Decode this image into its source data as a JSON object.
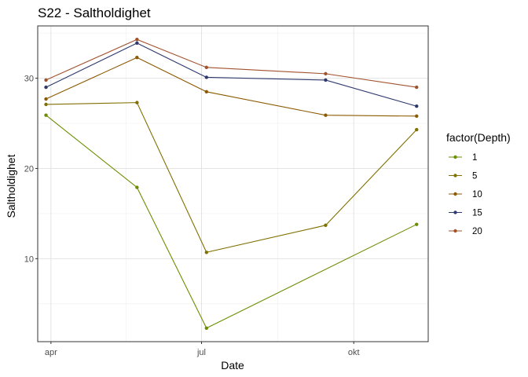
{
  "chart_data": {
    "type": "line",
    "title": "S22  -  Saltholdighet",
    "xlabel": "Date",
    "ylabel": "Saltholdighet",
    "x_axis": {
      "type": "date",
      "range": [
        "2023-03-24",
        "2023-11-15"
      ],
      "ticks": [
        {
          "date": "2023-04-01",
          "label": "apr"
        },
        {
          "date": "2023-07-01",
          "label": "jul"
        },
        {
          "date": "2023-10-01",
          "label": "okt"
        }
      ]
    },
    "y_axis": {
      "range": [
        0.8,
        35.8
      ],
      "ticks": [
        10,
        20,
        30
      ],
      "minor_ticks": [
        5,
        15,
        25,
        35
      ]
    },
    "grid": true,
    "legend": {
      "title": "factor(Depth)",
      "placement": "right"
    },
    "x": [
      "2023-03-29",
      "2023-05-23",
      "2023-07-04",
      "2023-09-14",
      "2023-11-08"
    ],
    "series": [
      {
        "name": "1",
        "color": "#6b8e00",
        "values": [
          25.9,
          17.9,
          2.3,
          null,
          13.8
        ]
      },
      {
        "name": "5",
        "color": "#807000",
        "values": [
          27.1,
          27.3,
          10.7,
          13.7,
          24.3
        ]
      },
      {
        "name": "10",
        "color": "#8c5a00",
        "values": [
          27.7,
          32.3,
          28.5,
          25.9,
          25.8
        ]
      },
      {
        "name": "15",
        "color": "#2e3a6e",
        "values": [
          29.0,
          33.9,
          30.1,
          29.8,
          26.9
        ]
      },
      {
        "name": "20",
        "color": "#a0522d",
        "values": [
          29.8,
          34.3,
          31.2,
          30.5,
          29.0
        ]
      }
    ]
  }
}
